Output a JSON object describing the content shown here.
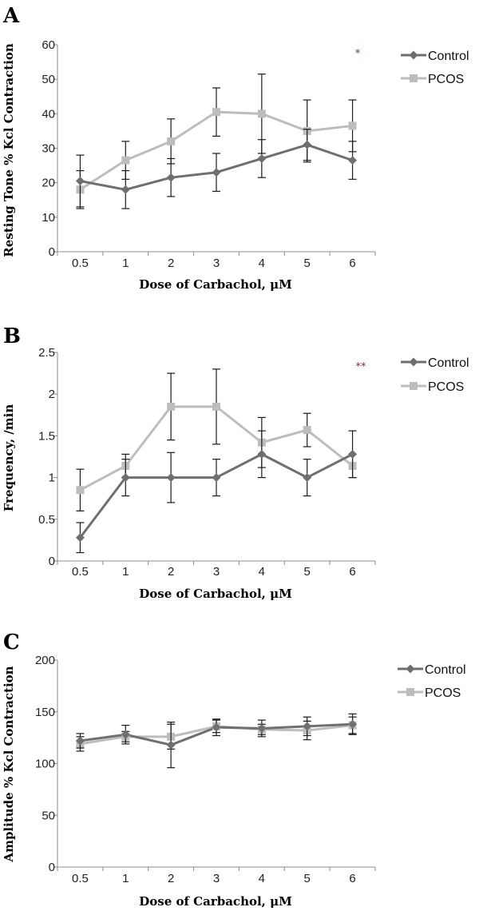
{
  "colors": {
    "control": "#6f6f6f",
    "pcos": "#bdbdbd",
    "axis": "#8c8c8c",
    "errorbar": "#1a1a1a",
    "star": "#7a3040"
  },
  "chart_data": [
    {
      "panel": "A",
      "type": "line",
      "xlabel": "Dose of Carbachol, μM",
      "ylabel": "Resting Tone % Kcl Contraction",
      "categories": [
        "0.5",
        "1",
        "2",
        "3",
        "4",
        "5",
        "6"
      ],
      "ylim": [
        0,
        60
      ],
      "yticks": [
        0,
        10,
        20,
        30,
        40,
        50,
        60
      ],
      "legend": "right",
      "annotation": "*",
      "series": [
        {
          "name": "Control",
          "marker": "diamond",
          "values": [
            20.5,
            18,
            21.5,
            23,
            27,
            31,
            26.5
          ],
          "errors": [
            7.5,
            5.5,
            5.5,
            5.5,
            5.5,
            4.5,
            5.5
          ]
        },
        {
          "name": "PCOS",
          "marker": "square",
          "values": [
            18,
            26.5,
            32,
            40.5,
            40,
            35,
            36.5
          ],
          "errors": [
            5.5,
            5.5,
            6.5,
            7,
            11.5,
            9,
            7.5
          ]
        }
      ]
    },
    {
      "panel": "B",
      "type": "line",
      "xlabel": "Dose of Carbachol, μM",
      "ylabel": "Frequency, /min",
      "categories": [
        "0.5",
        "1",
        "2",
        "3",
        "4",
        "5",
        "6"
      ],
      "ylim": [
        0,
        2.5
      ],
      "yticks": [
        0,
        0.5,
        1,
        1.5,
        2,
        2.5
      ],
      "legend": "right",
      "annotation": "**",
      "series": [
        {
          "name": "Control",
          "marker": "diamond",
          "values": [
            0.28,
            1.0,
            1.0,
            1.0,
            1.28,
            1.0,
            1.28
          ],
          "errors": [
            0.18,
            0.22,
            0.3,
            0.22,
            0.28,
            0.22,
            0.28
          ]
        },
        {
          "name": "PCOS",
          "marker": "square",
          "values": [
            0.85,
            1.14,
            1.85,
            1.85,
            1.42,
            1.57,
            1.14
          ],
          "errors": [
            0.25,
            0.14,
            0.4,
            0.45,
            0.3,
            0.2,
            0.14
          ]
        }
      ]
    },
    {
      "panel": "C",
      "type": "line",
      "xlabel": "Dose of Carbachol, μM",
      "ylabel": "Amplitude % Kcl Contraction",
      "categories": [
        "0.5",
        "1",
        "2",
        "3",
        "4",
        "5",
        "6"
      ],
      "ylim": [
        0,
        200
      ],
      "yticks": [
        0,
        50,
        100,
        150,
        200
      ],
      "legend": "right",
      "annotation": "",
      "series": [
        {
          "name": "Control",
          "marker": "diamond",
          "values": [
            122,
            128,
            118,
            135,
            134,
            136,
            138
          ],
          "errors": [
            7,
            9,
            22,
            8,
            8,
            9,
            10
          ]
        },
        {
          "name": "PCOS",
          "marker": "square",
          "values": [
            119,
            126,
            126,
            136,
            133,
            132,
            137
          ],
          "errors": [
            7,
            5,
            12,
            6,
            5,
            9,
            8
          ]
        }
      ]
    }
  ]
}
